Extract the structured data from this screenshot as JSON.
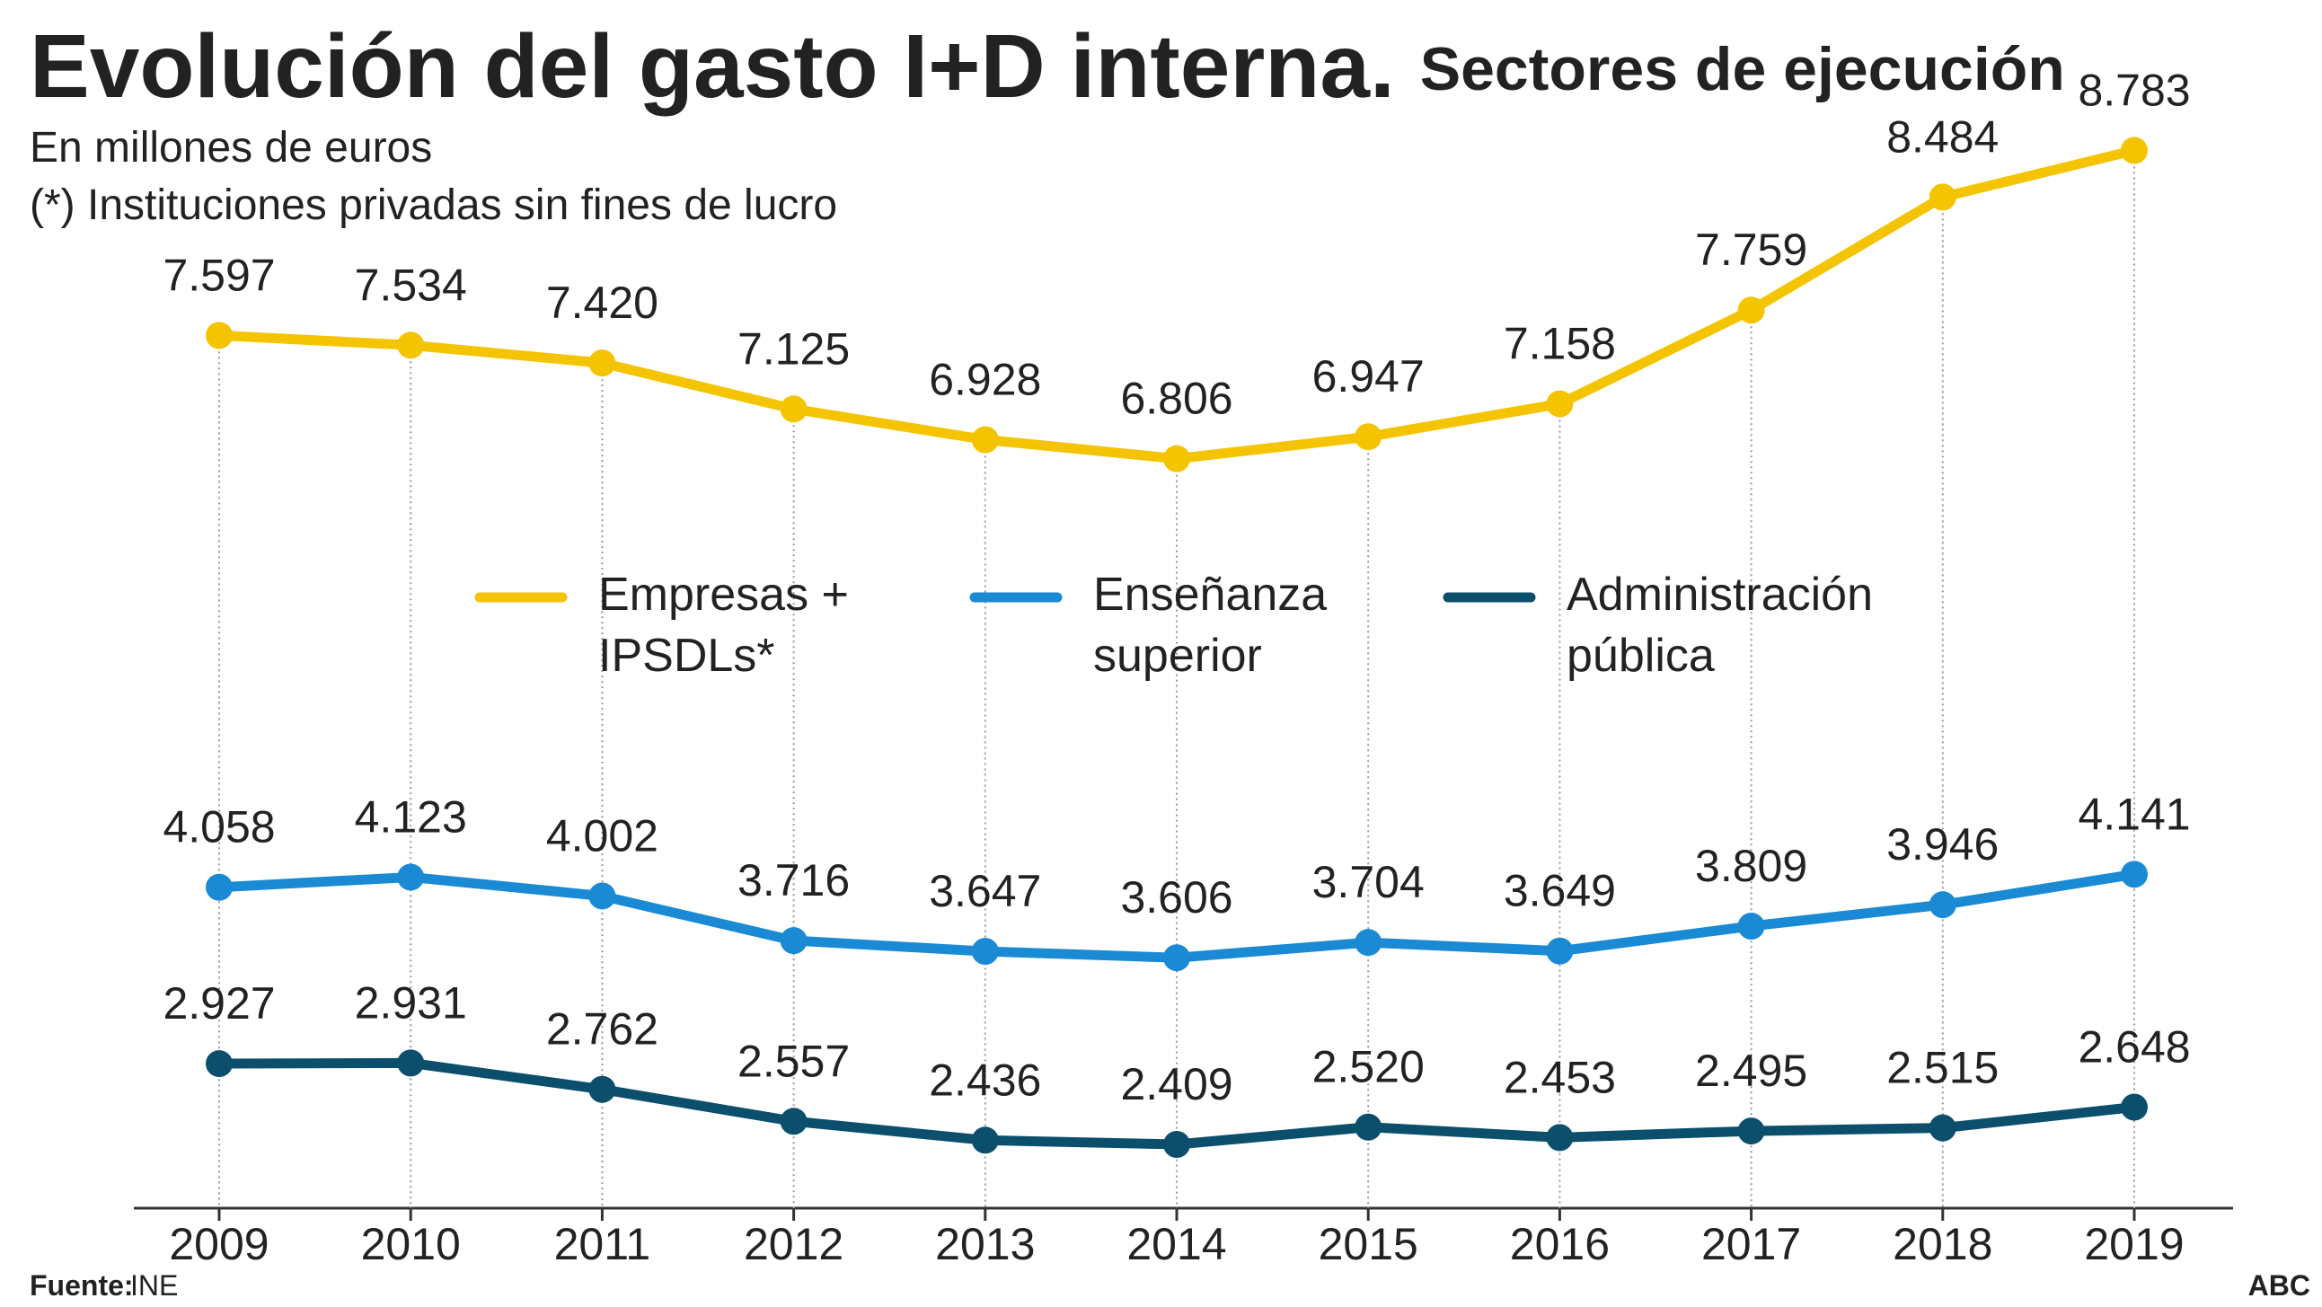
{
  "chart_data": {
    "type": "line",
    "title": "Evolución del gasto I+D interna.",
    "subtitle": "Sectores de ejecución",
    "units_note": "En millones de euros",
    "footnote": "(*) Instituciones privadas sin fines de lucro",
    "source_label": "Fuente:",
    "source": "INE",
    "brand": "ABC",
    "categories": [
      "2009",
      "2010",
      "2011",
      "2012",
      "2013",
      "2014",
      "2015",
      "2016",
      "2017",
      "2018",
      "2019"
    ],
    "ylim": [
      2000,
      9500
    ],
    "series": [
      {
        "name": "Empresas + IPSDLs*",
        "color": "#f5c400",
        "values": [
          7597,
          7534,
          7420,
          7125,
          6928,
          6806,
          6947,
          7158,
          7759,
          8484,
          8783
        ],
        "value_labels": [
          "7.597",
          "7.534",
          "7.420",
          "7.125",
          "6.928",
          "6.806",
          "6.947",
          "7.158",
          "7.759",
          "8.484",
          "8.783"
        ]
      },
      {
        "name": "Enseñanza superior",
        "color": "#1a8ad4",
        "values": [
          4058,
          4123,
          4002,
          3716,
          3647,
          3606,
          3704,
          3649,
          3809,
          3946,
          4141
        ],
        "value_labels": [
          "4.058",
          "4.123",
          "4.002",
          "3.716",
          "3.647",
          "3.606",
          "3.704",
          "3.649",
          "3.809",
          "3.946",
          "4.141"
        ]
      },
      {
        "name": "Administración pública",
        "color": "#0b4f6c",
        "values": [
          2927,
          2931,
          2762,
          2557,
          2436,
          2409,
          2520,
          2453,
          2495,
          2515,
          2648
        ],
        "value_labels": [
          "2.927",
          "2.931",
          "2.762",
          "2.557",
          "2.436",
          "2.409",
          "2.520",
          "2.453",
          "2.495",
          "2.515",
          "2.648"
        ]
      }
    ]
  }
}
